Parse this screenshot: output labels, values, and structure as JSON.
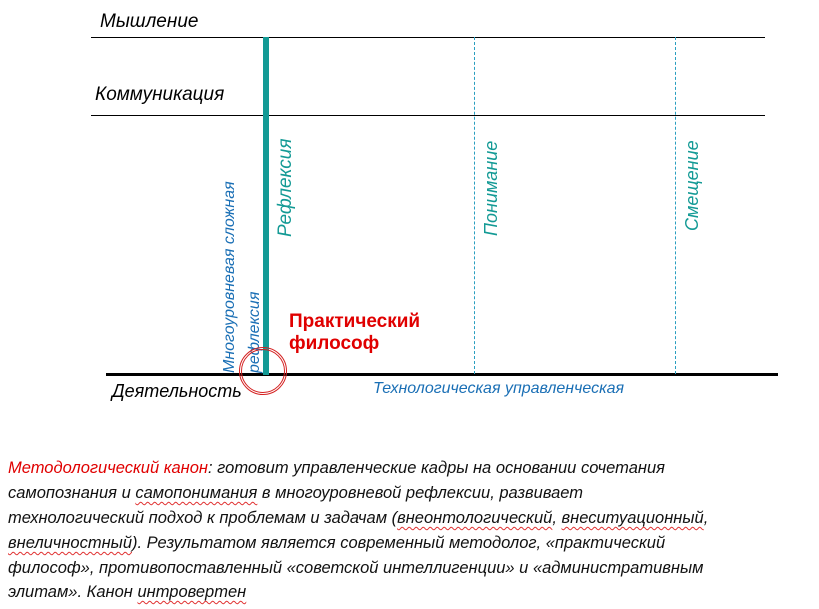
{
  "diagram": {
    "levels": {
      "top": "Мышление",
      "middle": "Коммуникация",
      "bottom": "Деятельность"
    },
    "axes": {
      "reflexion": "Рефлексия",
      "understanding": "Понимание",
      "shift": "Смещение",
      "multilevel_line1": "Многоуровневая сложная",
      "multilevel_line2": "рефлексия"
    },
    "bottom_label": "Технологическая управленческая",
    "highlight": {
      "line1": "Практический",
      "line2": "философ"
    },
    "colors": {
      "teal": "#139a95",
      "blue": "#1a6fb5",
      "red": "#e00000"
    }
  },
  "caption": {
    "term": "Методологический канон",
    "l1": ": готовит управленческие кадры на основании сочетания",
    "l2a": "самопознания и ",
    "l2b": "самопонимания",
    "l2c": " в многоуровневой рефлексии, развивает",
    "l3a": "технологический подход к проблемам и задачам (",
    "l3b": "внеонтологический",
    "l3c": ", ",
    "l3d": "внеситуационный",
    "l3e": ",",
    "l4a": "внеличностный",
    "l4b": "). Результатом является современный методолог, «практический",
    "l5": "философ», противопоставленный «советской интеллигенции»  и «административным",
    "l6a": "элитам». Канон ",
    "l6b": "интровертен"
  }
}
